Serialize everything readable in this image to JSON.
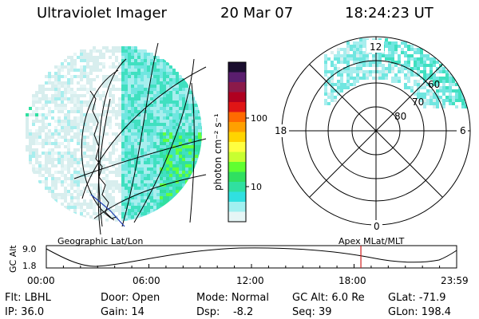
{
  "header": {
    "title": "Ultraviolet Imager",
    "date": "20 Mar 07",
    "time": "18:24:23 UT"
  },
  "colorbar": {
    "label": "photon cm⁻² s⁻¹",
    "ticks": [
      "100",
      "10"
    ],
    "colors": [
      "#1a0d2e",
      "#5a1e6e",
      "#8b1a4a",
      "#b00020",
      "#e01515",
      "#ff6a00",
      "#ffa000",
      "#ffd400",
      "#ffff40",
      "#c8ff30",
      "#60ff30",
      "#30e060",
      "#30e0a0",
      "#30e0e0",
      "#a0f0f0",
      "#e6f6f6"
    ]
  },
  "polar_plot": {
    "mlt_labels": {
      "top": "12",
      "left": "18",
      "right": "6",
      "bottom": "0"
    },
    "lat_labels": [
      "60",
      "70",
      "80"
    ]
  },
  "timeline": {
    "left_caption": "Geographic Lat/Lon",
    "right_caption": "Apex  MLat/MLT",
    "ylabel": "GC Alt",
    "yticks": [
      "9.0",
      "1.8"
    ],
    "xticks": [
      "00:00",
      "06:00",
      "12:00",
      "18:00",
      "23:59"
    ],
    "marker_time_hours": 18.4
  },
  "info": {
    "filter": "Flt: LBHL",
    "door": "Door: Open",
    "mode": "Mode: Normal",
    "gc_alt": "GC Alt: 6.0 Re",
    "glat": "GLat: -71.9",
    "ip": "IP: 36.0",
    "gain": "Gain: 14",
    "dsp": "Dsp:    -8.2",
    "seq": "Seq: 39",
    "glon": "GLon: 198.4"
  }
}
